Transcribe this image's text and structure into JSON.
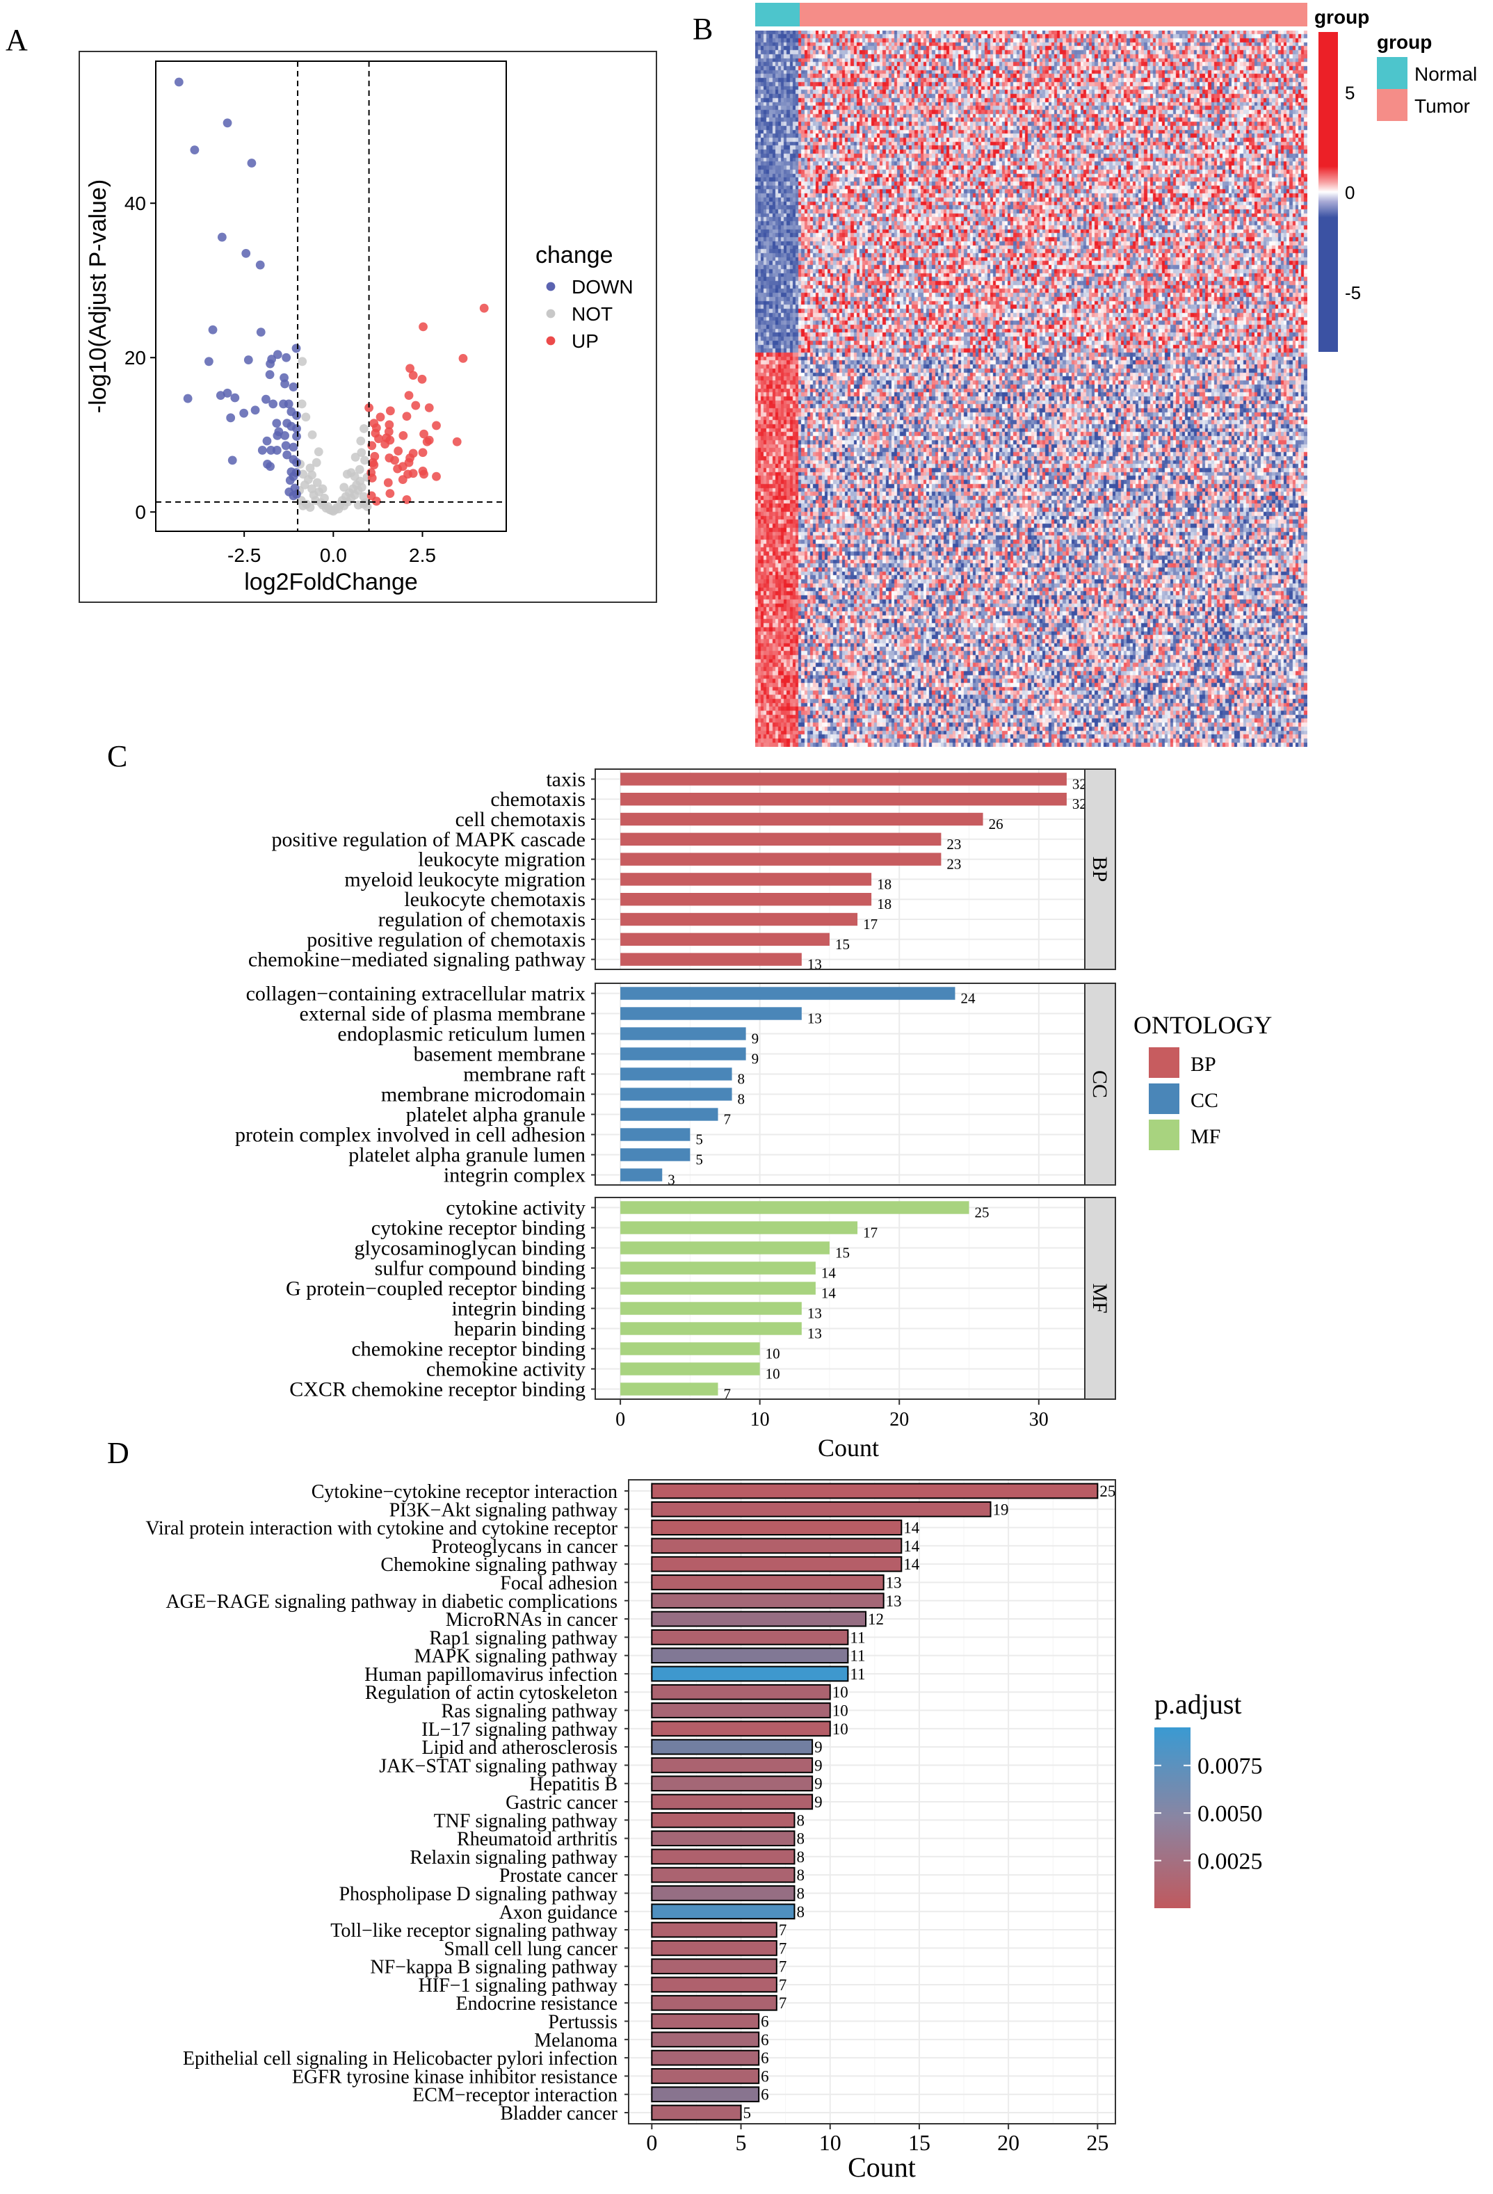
{
  "panel_labels": [
    "A",
    "B",
    "C",
    "D"
  ],
  "chart_data": [
    {
      "panel": "A",
      "type": "scatter",
      "xlabel": "log2FoldChange",
      "ylabel": "-log10(Adjust P-value)",
      "xticks": [
        "-2.5",
        "0.0",
        "2.5"
      ],
      "xtick_values": [
        -2.5,
        0,
        2.5
      ],
      "yticks": [
        "0",
        "20",
        "40"
      ],
      "ytick_values": [
        0,
        20,
        40
      ],
      "xlim": [
        -4.98,
        4.85
      ],
      "ylim": [
        -2.5,
        58.4
      ],
      "thresholds": {
        "x": [
          -1,
          1
        ],
        "y": 1.3
      },
      "legend": {
        "title": "change",
        "position": "right",
        "entries": [
          {
            "label": "DOWN",
            "color": "#5b63b0"
          },
          {
            "label": "NOT",
            "color": "#c8c8c8"
          },
          {
            "label": "UP",
            "color": "#ec4a4a"
          }
        ]
      },
      "series": [
        {
          "name": "DOWN",
          "points": [
            [
              -4.33,
              55.7
            ],
            [
              -2.97,
              50.4
            ],
            [
              -3.89,
              46.9
            ],
            [
              -2.29,
              45.2
            ],
            [
              -3.12,
              35.6
            ],
            [
              -2.45,
              33.5
            ],
            [
              -2.05,
              32.0
            ],
            [
              -3.38,
              23.6
            ],
            [
              -2.03,
              23.3
            ],
            [
              -1.04,
              21.2
            ],
            [
              -3.49,
              19.5
            ],
            [
              -2.38,
              19.7
            ],
            [
              -1.56,
              20.4
            ],
            [
              -1.32,
              20.0
            ],
            [
              -1.73,
              19.8
            ],
            [
              -1.77,
              19.2
            ],
            [
              -1.78,
              17.8
            ],
            [
              -1.38,
              17.4
            ],
            [
              -1.36,
              16.6
            ],
            [
              -1.12,
              16.2
            ],
            [
              -4.08,
              14.7
            ],
            [
              -3.16,
              15.1
            ],
            [
              -2.97,
              15.4
            ],
            [
              -2.76,
              14.8
            ],
            [
              -1.89,
              14.6
            ],
            [
              -1.69,
              14.0
            ],
            [
              -1.4,
              14.0
            ],
            [
              -1.25,
              14.0
            ],
            [
              -2.19,
              13.2
            ],
            [
              -2.51,
              12.8
            ],
            [
              -2.88,
              12.2
            ],
            [
              -1.18,
              13.0
            ],
            [
              -1.03,
              12.5
            ],
            [
              -1.59,
              11.5
            ],
            [
              -1.3,
              11.5
            ],
            [
              -1.18,
              11.1
            ],
            [
              -1.03,
              10.8
            ],
            [
              -1.53,
              10.4
            ],
            [
              -1.57,
              9.9
            ],
            [
              -1.36,
              9.9
            ],
            [
              -1.03,
              9.8
            ],
            [
              -1.86,
              9.2
            ],
            [
              -1.33,
              8.6
            ],
            [
              -1.12,
              8.4
            ],
            [
              -1.99,
              8.0
            ],
            [
              -1.75,
              8.0
            ],
            [
              -1.58,
              8.0
            ],
            [
              -1.3,
              7.4
            ],
            [
              -1.12,
              6.8
            ],
            [
              -1.03,
              6.4
            ],
            [
              -2.83,
              6.7
            ],
            [
              -1.85,
              6.2
            ],
            [
              -1.77,
              5.9
            ],
            [
              -1.18,
              5.2
            ],
            [
              -1.04,
              5.1
            ],
            [
              -1.12,
              4.6
            ],
            [
              -1.21,
              4.1
            ],
            [
              -1.08,
              3.1
            ],
            [
              -1.24,
              2.6
            ],
            [
              -1.03,
              2.3
            ],
            [
              -1.12,
              2.1
            ]
          ]
        },
        {
          "name": "NOT",
          "points": [
            [
              -0.87,
              19.5
            ],
            [
              -0.88,
              14.0
            ],
            [
              -0.77,
              12.3
            ],
            [
              0.86,
              10.8
            ],
            [
              -0.59,
              10.0
            ],
            [
              0.77,
              9.2
            ],
            [
              -0.41,
              7.8
            ],
            [
              0.79,
              7.7
            ],
            [
              0.62,
              7.1
            ],
            [
              0.88,
              6.7
            ],
            [
              -0.93,
              6.2
            ],
            [
              -0.47,
              6.4
            ],
            [
              -0.65,
              5.7
            ],
            [
              0.39,
              4.9
            ],
            [
              0.5,
              5.1
            ],
            [
              0.74,
              5.5
            ],
            [
              -0.85,
              4.9
            ],
            [
              -0.8,
              3.5
            ],
            [
              -0.7,
              4.2
            ],
            [
              -0.6,
              3.0
            ],
            [
              -0.55,
              2.2
            ],
            [
              -0.5,
              1.5
            ],
            [
              -0.45,
              3.8
            ],
            [
              -0.4,
              2.6
            ],
            [
              -0.35,
              1.2
            ],
            [
              -0.3,
              0.9
            ],
            [
              -0.25,
              1.8
            ],
            [
              -0.2,
              0.5
            ],
            [
              -0.15,
              0.7
            ],
            [
              -0.1,
              0.3
            ],
            [
              -0.05,
              0.2
            ],
            [
              0,
              0.1
            ],
            [
              0.05,
              0.3
            ],
            [
              0.1,
              0.6
            ],
            [
              0.15,
              0.4
            ],
            [
              0.2,
              1.0
            ],
            [
              0.25,
              1.5
            ],
            [
              0.3,
              0.8
            ],
            [
              0.35,
              2.0
            ],
            [
              0.4,
              1.3
            ],
            [
              0.45,
              2.5
            ],
            [
              0.5,
              1.8
            ],
            [
              0.55,
              3.0
            ],
            [
              0.6,
              2.2
            ],
            [
              0.65,
              3.5
            ],
            [
              0.7,
              2.8
            ],
            [
              0.75,
              4.0
            ],
            [
              0.8,
              3.2
            ],
            [
              0.85,
              2.0
            ],
            [
              0.9,
              1.2
            ],
            [
              0.95,
              4.5
            ],
            [
              -0.95,
              2.8
            ],
            [
              -0.9,
              1.5
            ],
            [
              -0.85,
              0.8
            ],
            [
              -0.75,
              1.0
            ],
            [
              -0.65,
              0.6
            ],
            [
              0.7,
              0.9
            ],
            [
              0.85,
              1.0
            ],
            [
              0.95,
              0.7
            ],
            [
              -0.6,
              4.8
            ],
            [
              -0.3,
              3.0
            ],
            [
              0.3,
              3.2
            ],
            [
              0.6,
              4.6
            ]
          ]
        },
        {
          "name": "UP",
          "points": [
            [
              4.23,
              26.4
            ],
            [
              2.52,
              24.0
            ],
            [
              3.64,
              19.9
            ],
            [
              2.15,
              18.6
            ],
            [
              2.24,
              17.7
            ],
            [
              2.49,
              17.2
            ],
            [
              2.12,
              15.1
            ],
            [
              2.31,
              13.8
            ],
            [
              2.69,
              13.5
            ],
            [
              1.0,
              13.5
            ],
            [
              1.6,
              13.1
            ],
            [
              1.32,
              12.3
            ],
            [
              2.06,
              12.4
            ],
            [
              2.89,
              11.2
            ],
            [
              1.14,
              11.5
            ],
            [
              1.21,
              10.9
            ],
            [
              1.57,
              11.3
            ],
            [
              1.56,
              10.4
            ],
            [
              2.54,
              10.1
            ],
            [
              1.96,
              9.9
            ],
            [
              1.18,
              10.2
            ],
            [
              1.27,
              9.5
            ],
            [
              1.49,
              9.6
            ],
            [
              1.59,
              9.3
            ],
            [
              1.45,
              8.8
            ],
            [
              1.08,
              8.6
            ],
            [
              2.69,
              9.3
            ],
            [
              2.63,
              9.1
            ],
            [
              3.47,
              9.1
            ],
            [
              1.82,
              7.9
            ],
            [
              2.24,
              7.6
            ],
            [
              2.51,
              7.7
            ],
            [
              1.16,
              7.2
            ],
            [
              1.57,
              7.0
            ],
            [
              1.72,
              6.7
            ],
            [
              2.15,
              7.0
            ],
            [
              2.12,
              6.4
            ],
            [
              1.11,
              6.4
            ],
            [
              1.14,
              6.1
            ],
            [
              1.95,
              5.9
            ],
            [
              1.8,
              5.6
            ],
            [
              2.09,
              4.9
            ],
            [
              2.24,
              5.0
            ],
            [
              2.51,
              5.3
            ],
            [
              2.54,
              4.9
            ],
            [
              2.89,
              4.6
            ],
            [
              1.06,
              5.1
            ],
            [
              1.09,
              4.4
            ],
            [
              1.95,
              4.2
            ],
            [
              1.54,
              3.8
            ],
            [
              1.59,
              2.4
            ],
            [
              2.06,
              1.6
            ],
            [
              1.07,
              2.1
            ],
            [
              1.21,
              1.4
            ]
          ]
        }
      ]
    },
    {
      "panel": "B",
      "type": "heatmap",
      "annotation_title": "group",
      "groups": [
        {
          "label": "Normal",
          "color": "#4dc5cc"
        },
        {
          "label": "Tumor",
          "color": "#f58d88"
        }
      ],
      "colorbar": {
        "ticks": [
          "5",
          "0",
          "-5"
        ],
        "tick_values": [
          5,
          0,
          -5
        ],
        "range": [
          -8,
          8
        ],
        "low": "#3b52a3",
        "mid": "#ffffff",
        "high": "#ec2027"
      },
      "legend_title": "group"
    },
    {
      "panel": "C",
      "type": "bar",
      "orientation": "horizontal",
      "xlabel": "Count",
      "xticks": [
        "0",
        "10",
        "20",
        "30"
      ],
      "xtick_values": [
        0,
        10,
        20,
        30
      ],
      "xlim": [
        -1.8,
        33.3
      ],
      "legend": {
        "title": "ONTOLOGY",
        "position": "right",
        "entries": [
          {
            "label": "BP",
            "color": "#c75c5f"
          },
          {
            "label": "CC",
            "color": "#4a86b8"
          },
          {
            "label": "MF",
            "color": "#a8d37f"
          }
        ]
      },
      "facets": [
        {
          "strip": "BP",
          "color": "#c75c5f",
          "categories": [
            "taxis",
            "chemotaxis",
            "cell chemotaxis",
            "positive regulation of MAPK cascade",
            "leukocyte migration",
            "myeloid leukocyte migration",
            "leukocyte chemotaxis",
            "regulation of chemotaxis",
            "positive regulation of chemotaxis",
            "chemokine−mediated signaling pathway"
          ],
          "values": [
            32,
            32,
            26,
            23,
            23,
            18,
            18,
            17,
            15,
            13
          ]
        },
        {
          "strip": "CC",
          "color": "#4a86b8",
          "categories": [
            "collagen−containing extracellular matrix",
            "external side of plasma membrane",
            "endoplasmic reticulum lumen",
            "basement membrane",
            "membrane raft",
            "membrane microdomain",
            "platelet alpha granule",
            "protein complex involved in cell adhesion",
            "platelet alpha granule lumen",
            "integrin complex"
          ],
          "values": [
            24,
            13,
            9,
            9,
            8,
            8,
            7,
            5,
            5,
            3
          ]
        },
        {
          "strip": "MF",
          "color": "#a8d37f",
          "categories": [
            "cytokine activity",
            "cytokine receptor binding",
            "glycosaminoglycan binding",
            "sulfur compound binding",
            "G protein−coupled receptor binding",
            "integrin binding",
            "heparin binding",
            "chemokine receptor binding",
            "chemokine activity",
            "CXCR chemokine receptor binding"
          ],
          "values": [
            25,
            17,
            15,
            14,
            14,
            13,
            13,
            10,
            10,
            7
          ]
        }
      ]
    },
    {
      "panel": "D",
      "type": "bar",
      "orientation": "horizontal",
      "xlabel": "Count",
      "xticks": [
        "0",
        "5",
        "10",
        "15",
        "20",
        "25"
      ],
      "xtick_values": [
        0,
        5,
        10,
        15,
        20,
        25
      ],
      "xlim": [
        -1.3,
        26.0
      ],
      "colorbar": {
        "title": "p.adjust",
        "ticks": [
          "0.0075",
          "0.0050",
          "0.0025"
        ],
        "tick_values": [
          0.0075,
          0.005,
          0.0025
        ],
        "range": [
          0.0,
          0.0095
        ],
        "low": "#c0595e",
        "high": "#3a9ad2"
      },
      "categories": [
        "Cytokine−cytokine receptor interaction",
        "PI3K−Akt signaling pathway",
        "Viral protein interaction with cytokine and cytokine receptor",
        "Proteoglycans in cancer",
        "Chemokine signaling pathway",
        "Focal adhesion",
        "AGE−RAGE signaling pathway in diabetic complications",
        "MicroRNAs in cancer",
        "Rap1 signaling pathway",
        "MAPK signaling pathway",
        "Human papillomavirus infection",
        "Regulation of actin cytoskeleton",
        "Ras signaling pathway",
        "IL−17 signaling pathway",
        "Lipid and atherosclerosis",
        "JAK−STAT signaling pathway",
        "Hepatitis B",
        "Gastric cancer",
        "TNF signaling pathway",
        "Rheumatoid arthritis",
        "Relaxin signaling pathway",
        "Prostate cancer",
        "Phospholipase D signaling pathway",
        "Axon guidance",
        "Toll−like receptor signaling pathway",
        "Small cell lung cancer",
        "NF−kappa B signaling pathway",
        "HIF−1 signaling pathway",
        "Endocrine resistance",
        "Pertussis",
        "Melanoma",
        "Epithelial cell signaling in Helicobacter pylori infection",
        "EGFR tyrosine kinase inhibitor resistance",
        "ECM−receptor interaction",
        "Bladder cancer"
      ],
      "values": [
        25,
        19,
        14,
        14,
        14,
        13,
        13,
        12,
        11,
        11,
        11,
        10,
        10,
        10,
        9,
        9,
        9,
        9,
        8,
        8,
        8,
        8,
        8,
        8,
        7,
        7,
        7,
        7,
        7,
        6,
        6,
        6,
        6,
        6,
        5
      ],
      "p_adjust": [
        0.0005,
        0.0008,
        0.0006,
        0.001,
        0.0008,
        0.001,
        0.002,
        0.003,
        0.0012,
        0.0045,
        0.0092,
        0.0015,
        0.0018,
        0.0008,
        0.0055,
        0.0015,
        0.002,
        0.0012,
        0.001,
        0.002,
        0.0012,
        0.0015,
        0.003,
        0.008,
        0.0012,
        0.0012,
        0.0015,
        0.0012,
        0.0015,
        0.0015,
        0.002,
        0.0018,
        0.0015,
        0.004,
        0.0015
      ]
    }
  ]
}
